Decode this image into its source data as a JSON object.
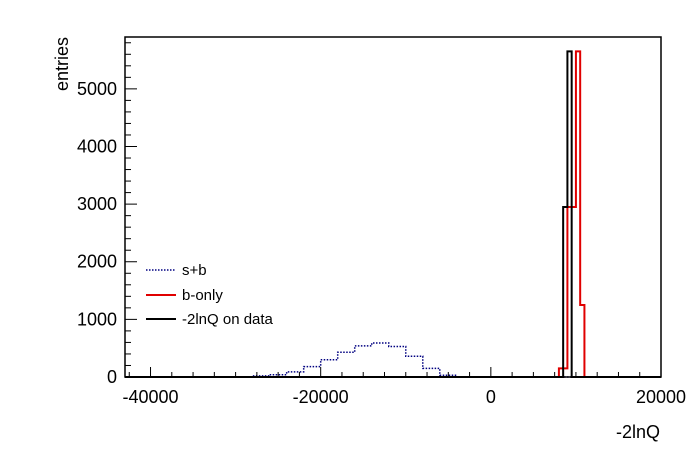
{
  "chart_data": {
    "type": "histogram",
    "title": "",
    "xlabel": "-2lnQ",
    "ylabel": "entries",
    "xlim": [
      -43000,
      20000
    ],
    "ylim": [
      0,
      5900
    ],
    "x_ticks": [
      -40000,
      -20000,
      0,
      20000
    ],
    "x_tick_labels": [
      "-40000",
      "-20000",
      "0",
      "20000"
    ],
    "y_ticks": [
      0,
      1000,
      2000,
      3000,
      4000,
      5000
    ],
    "y_tick_labels": [
      "0",
      "1000",
      "2000",
      "3000",
      "4000",
      "5000"
    ],
    "grid": false,
    "legend_position": "center-left",
    "series": [
      {
        "name": "s+b",
        "style": "dotted",
        "color": "#000080",
        "bin_edges": [
          -43000,
          -30000,
          -28000,
          -26000,
          -24000,
          -22000,
          -20000,
          -18000,
          -16000,
          -14000,
          -12000,
          -10000,
          -8000,
          -6000,
          -4000,
          20000
        ],
        "counts": [
          0,
          5,
          20,
          40,
          90,
          180,
          300,
          430,
          540,
          590,
          530,
          360,
          150,
          30,
          0
        ]
      },
      {
        "name": "b-only",
        "style": "solid",
        "color": "#e00000",
        "bin_edges": [
          -43000,
          8000,
          9000,
          10000,
          10500,
          11000,
          20000
        ],
        "counts": [
          0,
          150,
          2950,
          5650,
          1250,
          0
        ]
      },
      {
        "name": "-2lnQ on data",
        "style": "solid",
        "color": "#000000",
        "bin_edges": [
          -43000,
          8500,
          9000,
          9500,
          10000,
          20000
        ],
        "counts": [
          0,
          2950,
          5650,
          0,
          0
        ]
      }
    ],
    "legend": [
      "s+b",
      "b-only",
      "-2lnQ on data"
    ]
  },
  "colors": {
    "frame": "#000000",
    "s_plus_b": "#000080",
    "b_only": "#e00000",
    "data": "#000000"
  }
}
